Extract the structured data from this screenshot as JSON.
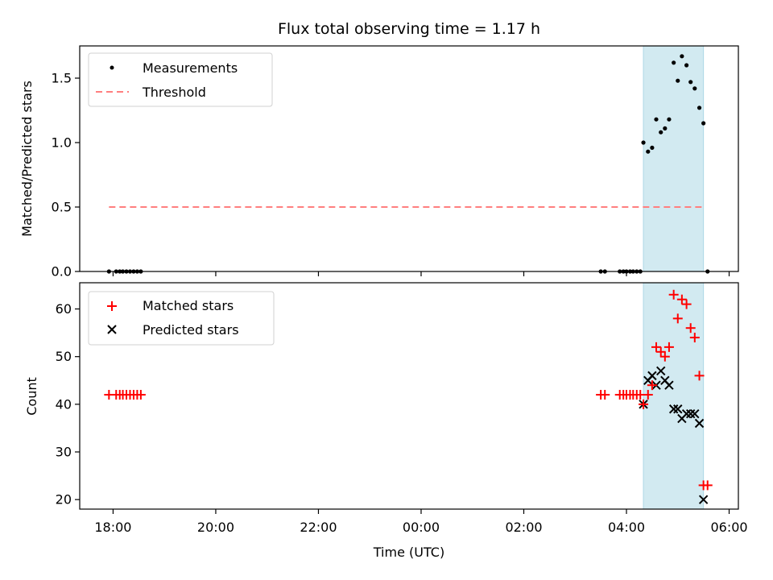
{
  "colors": {
    "measure": "#000000",
    "threshold": "#ff7f7f",
    "matched": "#ff0000",
    "predicted": "#000000",
    "span": "#add8e6"
  },
  "chart_data": [
    {
      "type": "scatter",
      "title": "Flux total observing time = 1.17 h",
      "xlabel": "",
      "ylabel": "Matched/Predicted stars",
      "ylim": [
        0,
        1.75
      ],
      "yticks": [
        0.0,
        0.5,
        1.0,
        1.5
      ],
      "ytick_labels": [
        "0.0",
        "0.5",
        "1.0",
        "1.5"
      ],
      "xlim_hours": [
        17.35,
        30.18
      ],
      "highlight_span_hours": [
        28.33,
        29.5
      ],
      "legend": {
        "location": "upper-left",
        "entries": [
          "Measurements",
          "Threshold"
        ]
      },
      "threshold": {
        "name": "Threshold",
        "value": 0.5,
        "x_range_hours": [
          17.92,
          29.53
        ]
      },
      "series": [
        {
          "name": "Measurements",
          "x_hours": [
            17.92,
            18.06,
            18.13,
            18.19,
            18.26,
            18.33,
            18.4,
            18.47,
            18.54,
            27.5,
            27.58,
            27.87,
            27.94,
            28.0,
            28.07,
            28.13,
            28.2,
            28.27,
            28.33,
            28.42,
            28.5,
            28.58,
            28.67,
            28.75,
            28.83,
            28.92,
            29.0,
            29.08,
            29.17,
            29.25,
            29.33,
            29.42,
            29.5,
            29.58
          ],
          "y": [
            0,
            0,
            0,
            0,
            0,
            0,
            0,
            0,
            0,
            0,
            0,
            0,
            0,
            0,
            0,
            0,
            0,
            0,
            1.0,
            0.93,
            0.96,
            1.18,
            1.08,
            1.11,
            1.18,
            1.62,
            1.48,
            1.67,
            1.6,
            1.47,
            1.42,
            1.27,
            1.15,
            0
          ]
        }
      ]
    },
    {
      "type": "scatter",
      "title": "",
      "xlabel": "Time (UTC)",
      "ylabel": "Count",
      "ylim": [
        18,
        65.5
      ],
      "yticks": [
        20,
        30,
        40,
        50,
        60
      ],
      "ytick_labels": [
        "20",
        "30",
        "40",
        "50",
        "60"
      ],
      "xlim_hours": [
        17.35,
        30.18
      ],
      "xticks_hours": [
        18,
        20,
        22,
        24,
        26,
        28,
        30
      ],
      "xtick_labels": [
        "18:00",
        "20:00",
        "22:00",
        "00:00",
        "02:00",
        "04:00",
        "06:00"
      ],
      "highlight_span_hours": [
        28.33,
        29.5
      ],
      "legend": {
        "location": "upper-left",
        "entries": [
          "Matched stars",
          "Predicted stars"
        ]
      },
      "series": [
        {
          "name": "Matched stars",
          "x_hours": [
            17.92,
            18.06,
            18.13,
            18.19,
            18.26,
            18.33,
            18.4,
            18.47,
            18.54,
            27.5,
            27.58,
            27.87,
            27.94,
            28.0,
            28.07,
            28.13,
            28.2,
            28.27,
            28.33,
            28.42,
            28.5,
            28.58,
            28.67,
            28.75,
            28.83,
            28.92,
            29.0,
            29.08,
            29.17,
            29.25,
            29.33,
            29.42,
            29.5,
            29.58
          ],
          "y": [
            42,
            42,
            42,
            42,
            42,
            42,
            42,
            42,
            42,
            42,
            42,
            42,
            42,
            42,
            42,
            42,
            42,
            42,
            40,
            42,
            44,
            52,
            51,
            50,
            52,
            63,
            58,
            62,
            61,
            56,
            54,
            46,
            23,
            23
          ]
        },
        {
          "name": "Predicted stars",
          "x_hours": [
            28.33,
            28.42,
            28.5,
            28.58,
            28.67,
            28.75,
            28.83,
            28.92,
            29.0,
            29.08,
            29.17,
            29.25,
            29.33,
            29.42,
            29.5
          ],
          "y": [
            40,
            45,
            46,
            44,
            47,
            45,
            44,
            39,
            39,
            37,
            38,
            38,
            38,
            36,
            20
          ]
        }
      ]
    }
  ]
}
